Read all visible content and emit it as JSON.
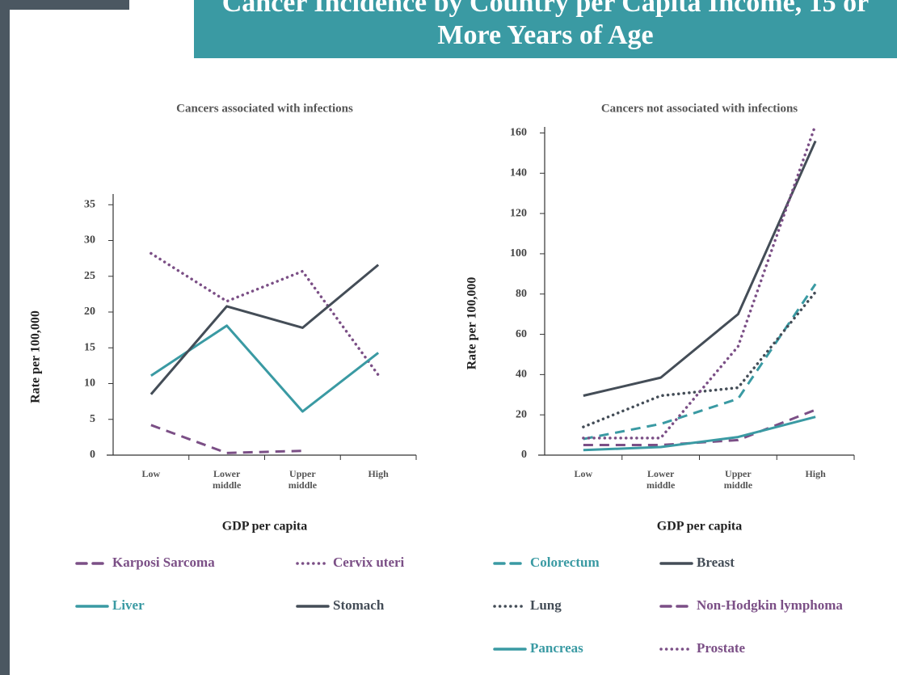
{
  "slide_title": "Cancer Incidence by Country per Capita Income, 15 or More Years of Age",
  "chart_data": [
    {
      "type": "line",
      "title": "Cancers associated with infections",
      "x_label": "GDP per capita",
      "y_label": "Rate per 100,000",
      "categories": [
        "Low",
        "Lower middle",
        "Upper middle",
        "High"
      ],
      "ylim": [
        0,
        36.5
      ],
      "yticks": [
        0,
        5,
        10,
        15,
        20,
        25,
        30,
        35
      ],
      "series": [
        {
          "name": "Karposi Sarcoma",
          "color": "#7b4f86",
          "dash": "dashed",
          "values": [
            4.2,
            0.3,
            0.6,
            null
          ]
        },
        {
          "name": "Cervix uteri",
          "color": "#7b4f86",
          "dash": "dotted",
          "values": [
            28.2,
            21.5,
            25.7,
            11.2
          ]
        },
        {
          "name": "Liver",
          "color": "#3a9aa3",
          "dash": "solid",
          "values": [
            11.1,
            18.1,
            6.1,
            14.3
          ]
        },
        {
          "name": "Stomach",
          "color": "#444d57",
          "dash": "solid",
          "values": [
            8.5,
            20.8,
            17.8,
            26.6
          ]
        }
      ]
    },
    {
      "type": "line",
      "title": "Cancers not associated with infections",
      "x_label": "GDP per capita",
      "y_label": "Rate per 100,000",
      "categories": [
        "Low",
        "Lower middle",
        "Upper middle",
        "High"
      ],
      "ylim": [
        0,
        163
      ],
      "yticks": [
        0,
        20,
        40,
        60,
        80,
        100,
        120,
        140,
        160
      ],
      "series": [
        {
          "name": "Colorectum",
          "color": "#3a9aa3",
          "dash": "dashed",
          "values": [
            8,
            15.5,
            28,
            85
          ]
        },
        {
          "name": "Breast",
          "color": "#444d57",
          "dash": "solid",
          "values": [
            29.5,
            38.5,
            70,
            156
          ]
        },
        {
          "name": "Lung",
          "color": "#444d57",
          "dash": "dotted",
          "values": [
            14,
            29.5,
            33.5,
            81
          ]
        },
        {
          "name": "Non-Hodgkin lymphoma",
          "color": "#7b4f86",
          "dash": "dashed",
          "values": [
            5,
            5,
            7.5,
            22.5
          ]
        },
        {
          "name": "Pancreas",
          "color": "#3a9aa3",
          "dash": "solid",
          "values": [
            2.5,
            4,
            9,
            19
          ]
        },
        {
          "name": "Prostate",
          "color": "#7b4f86",
          "dash": "dotted",
          "values": [
            8.5,
            8.5,
            54,
            164
          ]
        }
      ]
    }
  ]
}
